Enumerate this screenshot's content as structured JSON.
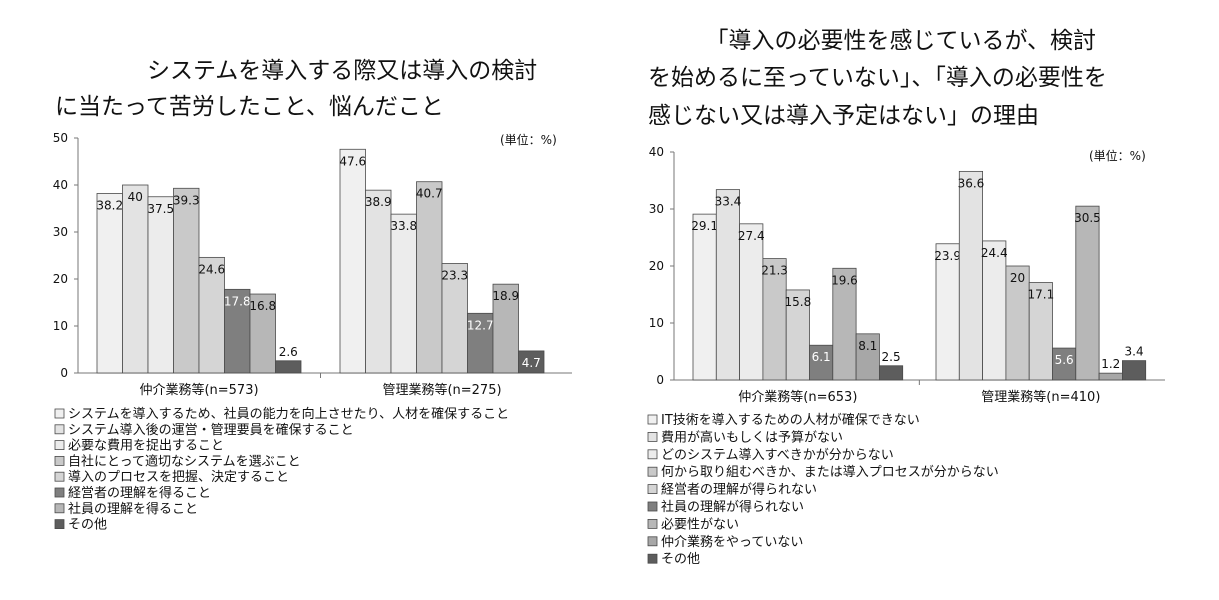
{
  "colors": {
    "c1": "#f0f0f0",
    "c2": "#e3e3e3",
    "c3": "#ececec",
    "c4": "#c9c9c9",
    "c5": "#d5d5d5",
    "c6": "#7f7f7f",
    "c7": "#b7b7b7",
    "c8": "#a7a7a7",
    "c9": "#5d5d5d",
    "edge": "#4a4a4a",
    "axis": "#777777"
  },
  "chart_data": [
    {
      "type": "bar",
      "title_lines": [
        "　　　　システムを導入する際又は導入の検討",
        "に当たって苦労したこと、悩んだこと"
      ],
      "unit_label": "(単位：%)",
      "ylim": [
        0,
        50
      ],
      "yticks": [
        0,
        10,
        20,
        30,
        40,
        50
      ],
      "grid": false,
      "legend_position": "bottom",
      "categories": [
        "仲介業務等(n=573)",
        "管理業務等(n=275)"
      ],
      "series": [
        {
          "name": "システムを導入するため、社員の能力を向上させたり、人材を確保すること",
          "values": [
            38.2,
            47.6
          ],
          "color": "#f0f0f0"
        },
        {
          "name": "システム導入後の運営・管理要員を確保すること",
          "values": [
            40.0,
            38.9
          ],
          "color": "#e3e3e3"
        },
        {
          "name": "必要な費用を捉出すること",
          "values": [
            37.5,
            33.8
          ],
          "color": "#ececec"
        },
        {
          "name": "自社にとって適切なシステムを選ぶこと",
          "values": [
            39.3,
            40.7
          ],
          "color": "#c9c9c9"
        },
        {
          "name": "導入のプロセスを把握、決定すること",
          "values": [
            24.6,
            23.3
          ],
          "color": "#d5d5d5"
        },
        {
          "name": "経営者の理解を得ること",
          "values": [
            17.8,
            12.7
          ],
          "color": "#7f7f7f"
        },
        {
          "name": "社員の理解を得ること",
          "values": [
            16.8,
            18.9
          ],
          "color": "#b7b7b7"
        },
        {
          "name": "その他",
          "values": [
            2.6,
            4.7
          ],
          "color": "#5d5d5d"
        }
      ]
    },
    {
      "type": "bar",
      "title_lines": [
        "　　　「導入の必要性を感じているが、検討",
        "を始めるに至っていない」、「導入の必要性を",
        "感じない又は導入予定はない」の理由"
      ],
      "unit_label": "(単位：%)",
      "ylim": [
        0,
        40
      ],
      "yticks": [
        0,
        10,
        20,
        30,
        40
      ],
      "grid": false,
      "legend_position": "bottom",
      "categories": [
        "仲介業務等(n=653)",
        "管理業務等(n=410)"
      ],
      "series": [
        {
          "name": "IT技術を導入するための人材が確保できない",
          "values": [
            29.1,
            23.9
          ],
          "color": "#f0f0f0"
        },
        {
          "name": "費用が高いもしくは予算がない",
          "values": [
            33.4,
            36.6
          ],
          "color": "#e3e3e3"
        },
        {
          "name": "どのシステム導入すべきかが分からない",
          "values": [
            27.4,
            24.4
          ],
          "color": "#ececec"
        },
        {
          "name": "何から取り組むべきか、または導入プロセスが分からない",
          "values": [
            21.3,
            20.0
          ],
          "color": "#c9c9c9"
        },
        {
          "name": "経営者の理解が得られない",
          "values": [
            15.8,
            17.1
          ],
          "color": "#d5d5d5"
        },
        {
          "name": "社員の理解が得られない",
          "values": [
            6.1,
            5.6
          ],
          "color": "#7f7f7f"
        },
        {
          "name": "必要性がない",
          "values": [
            19.6,
            30.5
          ],
          "color": "#b7b7b7"
        },
        {
          "name": "仲介業務をやっていない",
          "values": [
            8.1,
            1.2
          ],
          "color": "#a7a7a7"
        },
        {
          "name": "その他",
          "values": [
            2.5,
            3.4
          ],
          "color": "#5d5d5d"
        }
      ]
    }
  ]
}
